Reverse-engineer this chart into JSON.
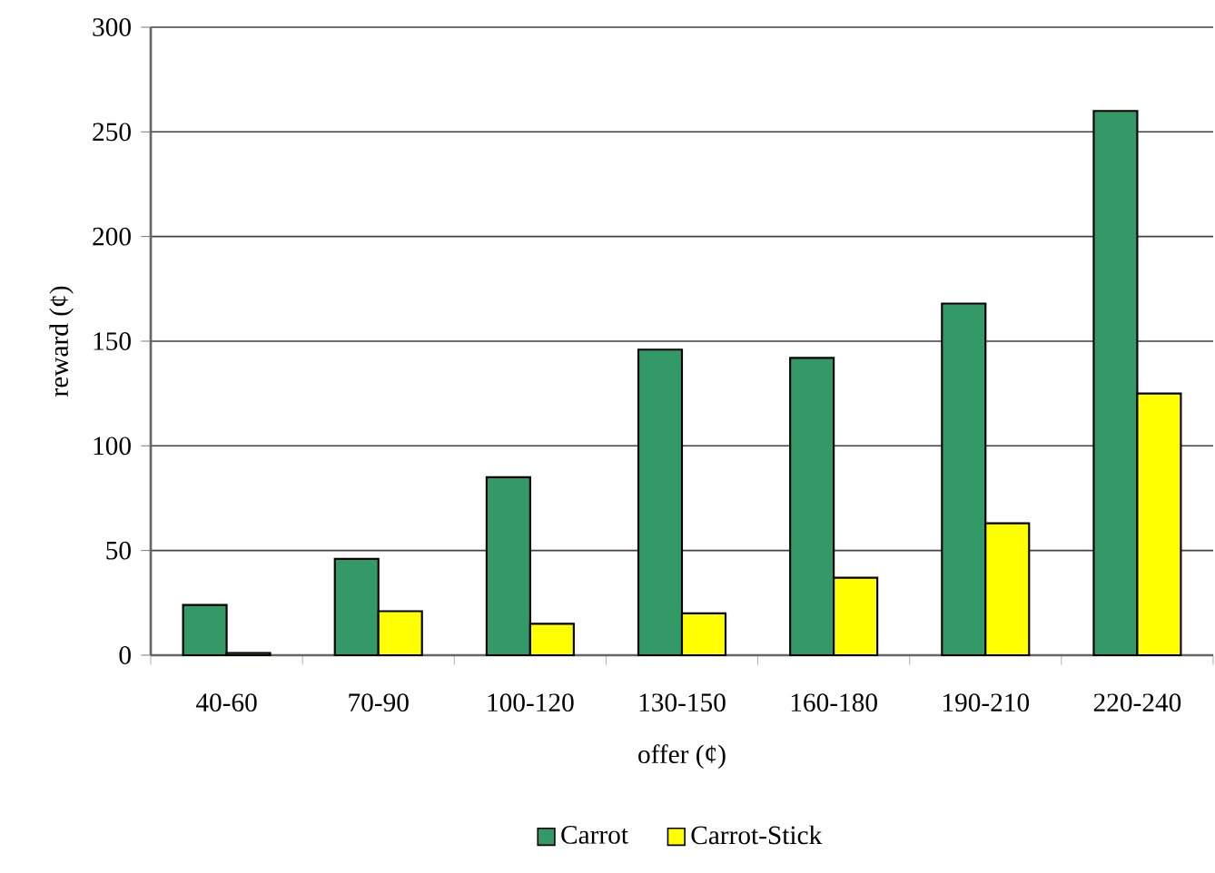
{
  "chart_data": {
    "type": "bar",
    "xlabel": "offer (¢)",
    "ylabel": "reward (¢)",
    "categories": [
      "40-60",
      "70-90",
      "100-120",
      "130-150",
      "160-180",
      "190-210",
      "220-240"
    ],
    "series": [
      {
        "name": "Carrot",
        "color": "#339966",
        "values": [
          24,
          46,
          85,
          146,
          142,
          168,
          260
        ]
      },
      {
        "name": "Carrot-Stick",
        "color": "#ffff00",
        "values": [
          1,
          21,
          15,
          20,
          37,
          63,
          125
        ]
      }
    ],
    "ylim": [
      0,
      300
    ],
    "yticks": [
      0,
      50,
      100,
      150,
      200,
      250,
      300
    ],
    "grid": "y",
    "legend": "bottom"
  }
}
